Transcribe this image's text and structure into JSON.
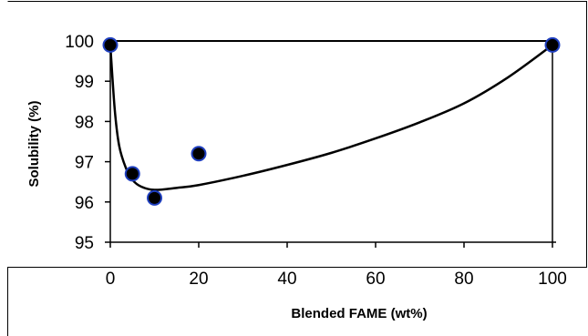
{
  "chart_data": {
    "type": "scatter",
    "title": "",
    "xlabel": "Blended FAME (wt%)",
    "ylabel": "Solubility (%)",
    "xlim": [
      0,
      100
    ],
    "ylim": [
      95,
      100
    ],
    "x_ticks": [
      0,
      20,
      40,
      60,
      80,
      100
    ],
    "y_ticks": [
      95,
      96,
      97,
      98,
      99,
      100
    ],
    "grid": false,
    "legend": "none",
    "series": [
      {
        "points": [
          {
            "x": 0,
            "y": 99.9
          },
          {
            "x": 5,
            "y": 96.7
          },
          {
            "x": 10,
            "y": 96.1
          },
          {
            "x": 20,
            "y": 97.2
          },
          {
            "x": 100,
            "y": 99.9
          }
        ],
        "marker_fill": "#000000",
        "marker_edge": "#1f3fbf"
      }
    ],
    "trend_line": {
      "type": "smoothed",
      "color": "#000000",
      "points": [
        {
          "x": 0,
          "y": 99.9
        },
        {
          "x": 1,
          "y": 98.3
        },
        {
          "x": 2,
          "y": 97.4
        },
        {
          "x": 3.5,
          "y": 96.85
        },
        {
          "x": 5,
          "y": 96.55
        },
        {
          "x": 7,
          "y": 96.38
        },
        {
          "x": 10,
          "y": 96.3
        },
        {
          "x": 15,
          "y": 96.35
        },
        {
          "x": 20,
          "y": 96.42
        },
        {
          "x": 30,
          "y": 96.65
        },
        {
          "x": 40,
          "y": 96.92
        },
        {
          "x": 50,
          "y": 97.22
        },
        {
          "x": 60,
          "y": 97.58
        },
        {
          "x": 70,
          "y": 97.98
        },
        {
          "x": 80,
          "y": 98.45
        },
        {
          "x": 90,
          "y": 99.1
        },
        {
          "x": 100,
          "y": 99.9
        }
      ]
    },
    "reference_line": {
      "y": 100,
      "color": "#000000"
    }
  }
}
